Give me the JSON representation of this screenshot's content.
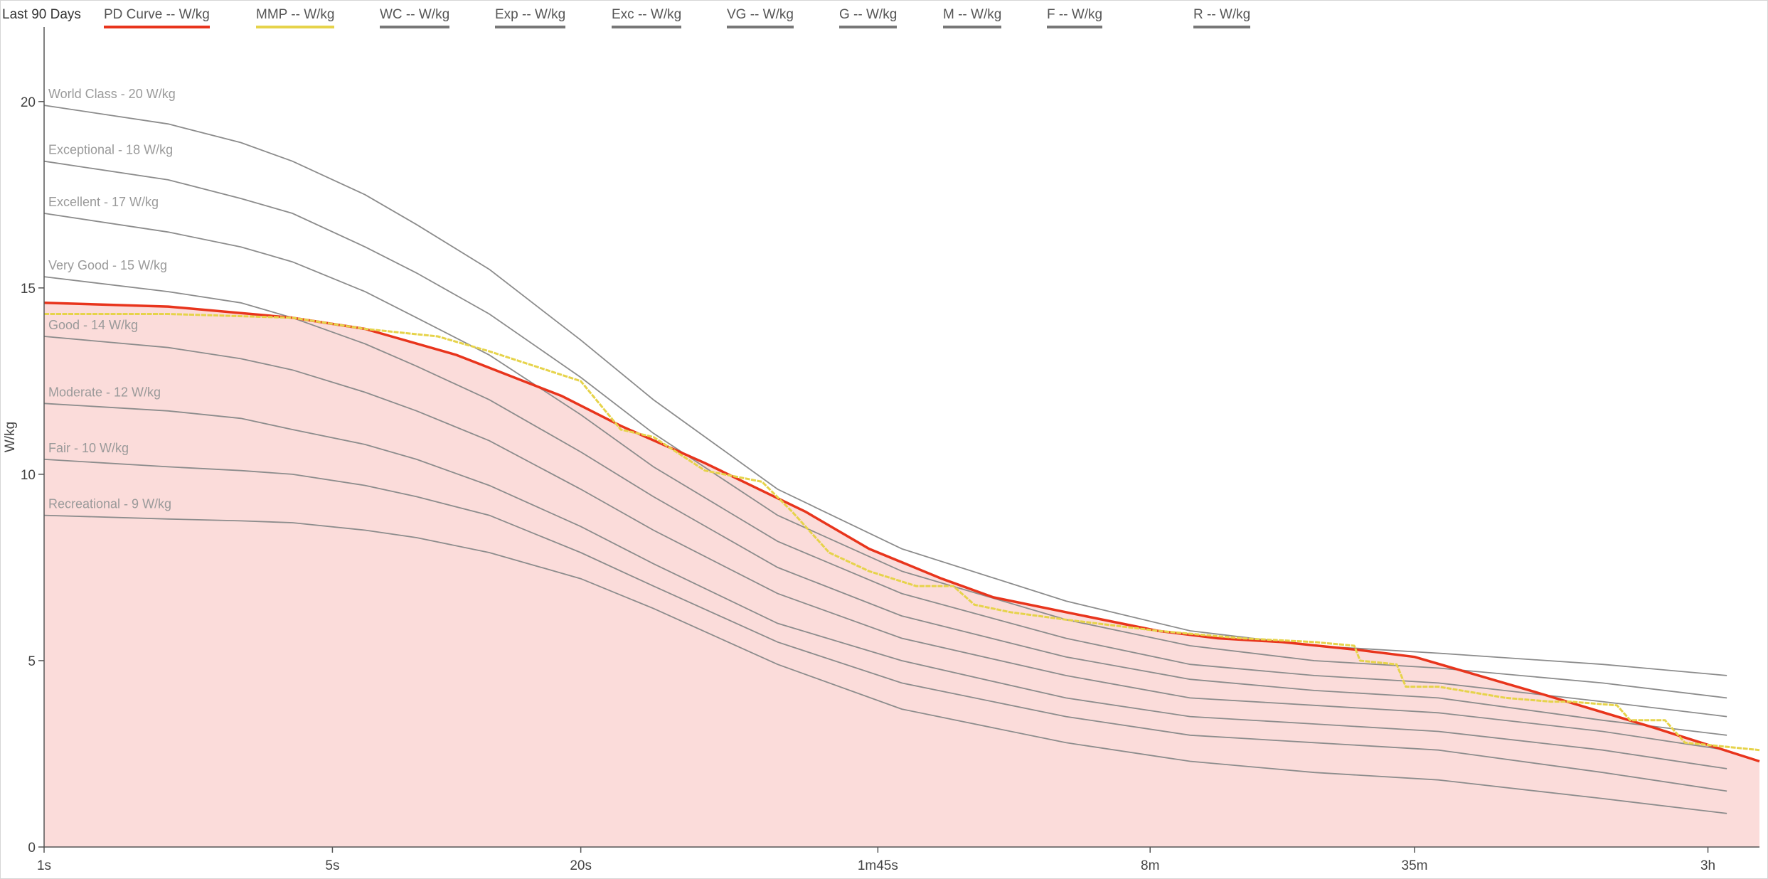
{
  "legend": {
    "title": "Last 90 Days",
    "items": [
      {
        "label": "PD Curve  -- W/kg",
        "color": "#e8341c"
      },
      {
        "label": "MMP  -- W/kg",
        "color": "#e6d34a"
      },
      {
        "label": "WC  -- W/kg",
        "color": "#777777"
      },
      {
        "label": "Exp  -- W/kg",
        "color": "#777777"
      },
      {
        "label": "Exc  -- W/kg",
        "color": "#777777"
      },
      {
        "label": "VG  -- W/kg",
        "color": "#777777"
      },
      {
        "label": "G  -- W/kg",
        "color": "#777777"
      },
      {
        "label": "M  -- W/kg",
        "color": "#777777"
      },
      {
        "label": "F  -- W/kg",
        "color": "#777777"
      },
      {
        "label": "R  -- W/kg",
        "color": "#777777"
      }
    ]
  },
  "chart_data": {
    "type": "line",
    "title": "",
    "xlabel": "",
    "ylabel": "W/kg",
    "x_scale": "log",
    "x_unit": "seconds",
    "xlim": [
      1,
      14400
    ],
    "ylim": [
      0,
      22
    ],
    "x_ticks": [
      {
        "value": 1,
        "label": "1s"
      },
      {
        "value": 5,
        "label": "5s"
      },
      {
        "value": 20,
        "label": "20s"
      },
      {
        "value": 105,
        "label": "1m45s"
      },
      {
        "value": 480,
        "label": "8m"
      },
      {
        "value": 2100,
        "label": "35m"
      },
      {
        "value": 10800,
        "label": "3h"
      }
    ],
    "y_ticks": [
      0,
      5,
      10,
      15,
      20
    ],
    "grid": false,
    "legend_position": "top",
    "series": [
      {
        "name": "World Class - 20 W/kg",
        "role": "benchmark",
        "color": "#8c8c8c",
        "x": [
          1,
          2,
          3,
          4,
          6,
          8,
          12,
          20,
          30,
          60,
          120,
          300,
          600,
          1200,
          2400,
          6000,
          12000
        ],
        "y": [
          19.9,
          19.4,
          18.9,
          18.4,
          17.5,
          16.7,
          15.5,
          13.6,
          12.0,
          9.6,
          8.0,
          6.6,
          5.8,
          5.4,
          5.2,
          4.9,
          4.6
        ]
      },
      {
        "name": "Exceptional - 18 W/kg",
        "role": "benchmark",
        "color": "#8c8c8c",
        "x": [
          1,
          2,
          3,
          4,
          6,
          8,
          12,
          20,
          30,
          60,
          120,
          300,
          600,
          1200,
          2400,
          6000,
          12000
        ],
        "y": [
          18.4,
          17.9,
          17.4,
          17.0,
          16.1,
          15.4,
          14.3,
          12.6,
          11.1,
          8.9,
          7.4,
          6.1,
          5.4,
          5.0,
          4.8,
          4.4,
          4.0
        ]
      },
      {
        "name": "Excellent - 17 W/kg",
        "role": "benchmark",
        "color": "#8c8c8c",
        "x": [
          1,
          2,
          3,
          4,
          6,
          8,
          12,
          20,
          30,
          60,
          120,
          300,
          600,
          1200,
          2400,
          6000,
          12000
        ],
        "y": [
          17.0,
          16.5,
          16.1,
          15.7,
          14.9,
          14.2,
          13.2,
          11.6,
          10.2,
          8.2,
          6.8,
          5.6,
          4.9,
          4.6,
          4.4,
          3.9,
          3.5
        ]
      },
      {
        "name": "Very Good - 15 W/kg",
        "role": "benchmark",
        "color": "#8c8c8c",
        "x": [
          1,
          2,
          3,
          4,
          6,
          8,
          12,
          20,
          30,
          60,
          120,
          300,
          600,
          1200,
          2400,
          6000,
          12000
        ],
        "y": [
          15.3,
          14.9,
          14.6,
          14.2,
          13.5,
          12.9,
          12.0,
          10.6,
          9.4,
          7.5,
          6.2,
          5.1,
          4.5,
          4.2,
          4.0,
          3.4,
          3.0
        ]
      },
      {
        "name": "Good - 14 W/kg",
        "role": "benchmark",
        "color": "#8c8c8c",
        "x": [
          1,
          2,
          3,
          4,
          6,
          8,
          12,
          20,
          30,
          60,
          120,
          300,
          600,
          1200,
          2400,
          6000,
          12000
        ],
        "y": [
          13.7,
          13.4,
          13.1,
          12.8,
          12.2,
          11.7,
          10.9,
          9.6,
          8.5,
          6.8,
          5.6,
          4.6,
          4.0,
          3.8,
          3.6,
          3.1,
          2.6
        ]
      },
      {
        "name": "Moderate - 12 W/kg",
        "role": "benchmark",
        "color": "#8c8c8c",
        "x": [
          1,
          2,
          3,
          4,
          6,
          8,
          12,
          20,
          30,
          60,
          120,
          300,
          600,
          1200,
          2400,
          6000,
          12000
        ],
        "y": [
          11.9,
          11.7,
          11.5,
          11.2,
          10.8,
          10.4,
          9.7,
          8.6,
          7.6,
          6.0,
          5.0,
          4.0,
          3.5,
          3.3,
          3.1,
          2.6,
          2.1
        ]
      },
      {
        "name": "Fair - 10 W/kg",
        "role": "benchmark",
        "color": "#8c8c8c",
        "x": [
          1,
          2,
          3,
          4,
          6,
          8,
          12,
          20,
          30,
          60,
          120,
          300,
          600,
          1200,
          2400,
          6000,
          12000
        ],
        "y": [
          10.4,
          10.2,
          10.1,
          10.0,
          9.7,
          9.4,
          8.9,
          7.9,
          7.0,
          5.5,
          4.4,
          3.5,
          3.0,
          2.8,
          2.6,
          2.0,
          1.5
        ]
      },
      {
        "name": "Recreational - 9 W/kg",
        "role": "benchmark",
        "color": "#8c8c8c",
        "x": [
          1,
          2,
          3,
          4,
          6,
          8,
          12,
          20,
          30,
          60,
          120,
          300,
          600,
          1200,
          2400,
          6000,
          12000
        ],
        "y": [
          8.9,
          8.8,
          8.75,
          8.7,
          8.5,
          8.3,
          7.9,
          7.2,
          6.4,
          4.9,
          3.7,
          2.8,
          2.3,
          2.0,
          1.8,
          1.3,
          0.9
        ]
      },
      {
        "name": "PD Curve",
        "role": "model",
        "color": "#e8341c",
        "fill": "#fbdcda",
        "x": [
          1,
          2,
          4,
          6,
          10,
          18,
          25,
          40,
          70,
          100,
          150,
          200,
          300,
          500,
          700,
          1000,
          1500,
          2100,
          4000,
          8000,
          14400
        ],
        "y": [
          14.6,
          14.5,
          14.2,
          13.9,
          13.2,
          12.1,
          11.3,
          10.3,
          9.0,
          8.0,
          7.2,
          6.7,
          6.3,
          5.8,
          5.6,
          5.5,
          5.3,
          5.1,
          4.2,
          3.2,
          2.3
        ]
      },
      {
        "name": "MMP",
        "role": "actual",
        "color": "#e6d34a",
        "x": [
          1,
          2,
          4,
          6,
          9,
          12,
          20,
          25,
          30,
          40,
          55,
          65,
          80,
          100,
          130,
          160,
          180,
          220,
          300,
          500,
          800,
          1200,
          1500,
          1550,
          1900,
          2000,
          2400,
          3500,
          4500,
          5000,
          6500,
          7000,
          8500,
          9500,
          14400
        ],
        "y": [
          14.3,
          14.3,
          14.2,
          13.9,
          13.7,
          13.3,
          12.5,
          11.2,
          11.0,
          10.1,
          9.8,
          9.0,
          7.9,
          7.4,
          7.0,
          7.0,
          6.5,
          6.3,
          6.1,
          5.8,
          5.6,
          5.5,
          5.4,
          5.0,
          4.9,
          4.3,
          4.3,
          4.0,
          3.9,
          3.9,
          3.8,
          3.4,
          3.4,
          2.8,
          2.6
        ]
      }
    ],
    "benchmark_labels": [
      "World Class - 20 W/kg",
      "Exceptional - 18 W/kg",
      "Excellent - 17 W/kg",
      "Very Good - 15 W/kg",
      "Good - 14 W/kg",
      "Moderate - 12 W/kg",
      "Fair - 10 W/kg",
      "Recreational - 9 W/kg"
    ]
  }
}
